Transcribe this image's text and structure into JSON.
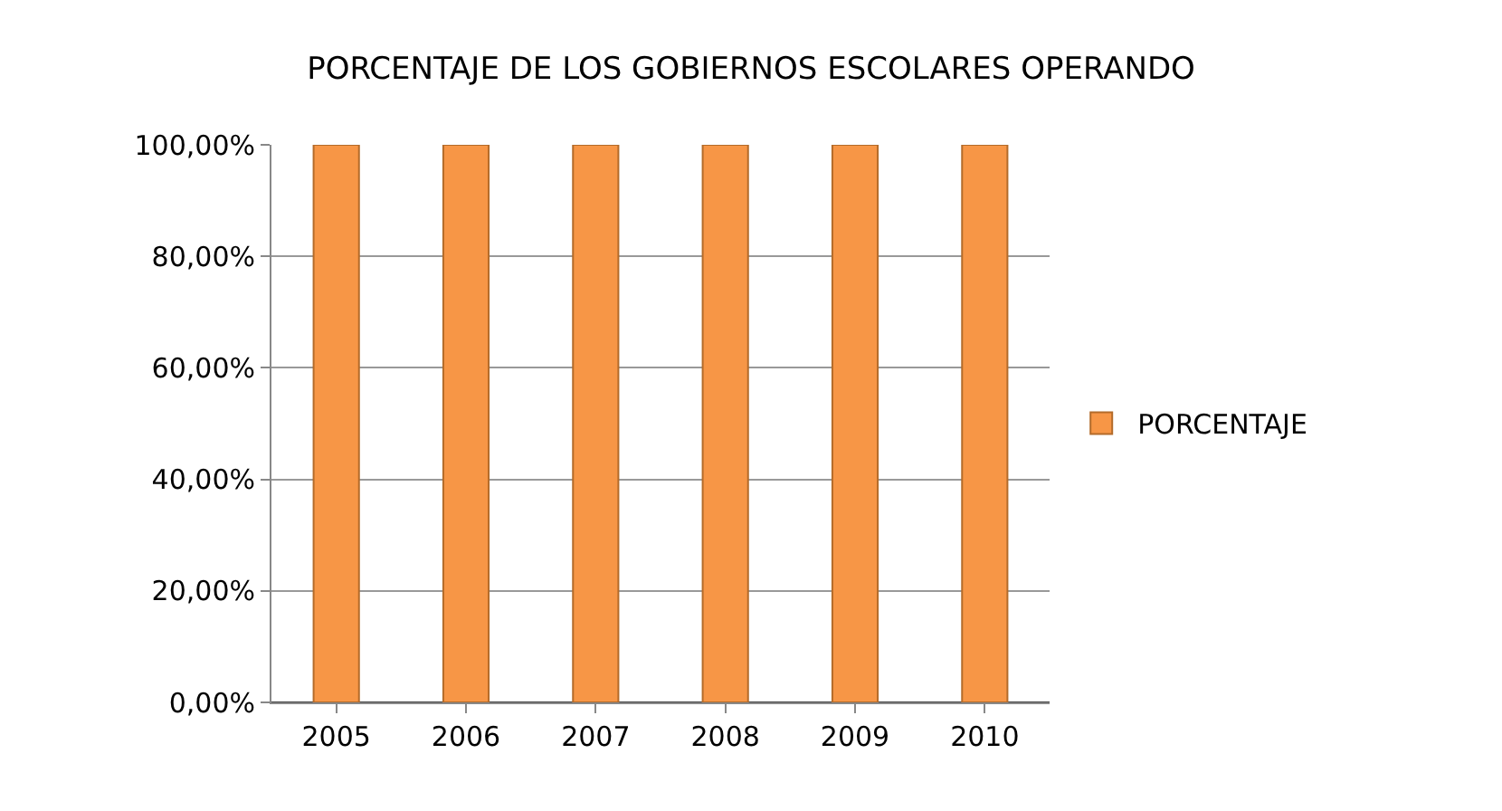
{
  "chart_data": {
    "type": "bar",
    "title": "PORCENTAJE DE LOS GOBIERNOS ESCOLARES OPERANDO",
    "categories": [
      "2005",
      "2006",
      "2007",
      "2008",
      "2009",
      "2010"
    ],
    "series": [
      {
        "name": "PORCENTAJE",
        "color": "#f79646",
        "values": [
          100,
          100,
          100,
          100,
          100,
          100
        ]
      }
    ],
    "ylim": [
      0,
      100
    ],
    "yticks": [
      {
        "value": 0,
        "label": "0,00%"
      },
      {
        "value": 20,
        "label": "20,00%"
      },
      {
        "value": 40,
        "label": "40,00%"
      },
      {
        "value": 60,
        "label": "60,00%"
      },
      {
        "value": 80,
        "label": "80,00%"
      },
      {
        "value": 100,
        "label": "100,00%"
      }
    ],
    "grid": "y",
    "legend": "right"
  }
}
